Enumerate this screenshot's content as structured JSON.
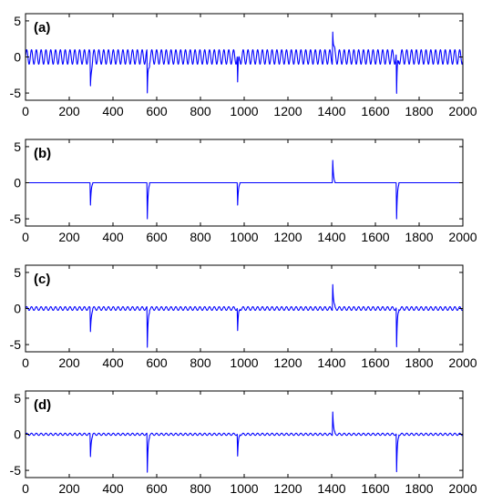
{
  "chart_data": [
    {
      "type": "line",
      "panel_label": "(a)",
      "xlim": [
        0,
        2000
      ],
      "ylim": [
        -6,
        6
      ],
      "x_ticks": [
        0,
        200,
        400,
        600,
        800,
        1000,
        1200,
        1400,
        1600,
        1800,
        2000
      ],
      "y_ticks": [
        5,
        0,
        -5
      ],
      "grid": false,
      "line_color": "#0000ff",
      "oscillation": {
        "amplitude": 1.0,
        "period": 22,
        "offset": 0
      },
      "spikes": [
        {
          "x": 297,
          "peak": -4.0
        },
        {
          "x": 557,
          "peak": -5.9
        },
        {
          "x": 970,
          "peak": -4.0
        },
        {
          "x": 1405,
          "peak": 4.2
        },
        {
          "x": 1697,
          "peak": -5.8
        }
      ]
    },
    {
      "type": "line",
      "panel_label": "(b)",
      "xlim": [
        0,
        2000
      ],
      "ylim": [
        -6,
        6
      ],
      "x_ticks": [
        0,
        200,
        400,
        600,
        800,
        1000,
        1200,
        1400,
        1600,
        1800,
        2000
      ],
      "y_ticks": [
        5,
        0,
        -5
      ],
      "grid": false,
      "line_color": "#0000ff",
      "oscillation": {
        "amplitude": 0.0,
        "period": 22,
        "offset": 0
      },
      "spikes": [
        {
          "x": 297,
          "peak": -3.1
        },
        {
          "x": 557,
          "peak": -5.0
        },
        {
          "x": 970,
          "peak": -3.1
        },
        {
          "x": 1405,
          "peak": 3.1
        },
        {
          "x": 1697,
          "peak": -5.0
        }
      ]
    },
    {
      "type": "line",
      "panel_label": "(c)",
      "xlim": [
        0,
        2000
      ],
      "ylim": [
        -6,
        6
      ],
      "x_ticks": [
        0,
        200,
        400,
        600,
        800,
        1000,
        1200,
        1400,
        1600,
        1800,
        2000
      ],
      "y_ticks": [
        5,
        0,
        -5
      ],
      "grid": false,
      "line_color": "#0000ff",
      "oscillation": {
        "amplitude": 0.25,
        "period": 22,
        "offset": 0
      },
      "spikes": [
        {
          "x": 297,
          "peak": -3.2
        },
        {
          "x": 557,
          "peak": -5.6
        },
        {
          "x": 970,
          "peak": -3.2
        },
        {
          "x": 1405,
          "peak": 3.5
        },
        {
          "x": 1697,
          "peak": -5.5
        }
      ]
    },
    {
      "type": "line",
      "panel_label": "(d)",
      "xlim": [
        0,
        2000
      ],
      "ylim": [
        -6,
        6
      ],
      "x_ticks": [
        0,
        200,
        400,
        600,
        800,
        1000,
        1200,
        1400,
        1600,
        1800,
        2000
      ],
      "y_ticks": [
        5,
        0,
        -5
      ],
      "grid": false,
      "line_color": "#0000ff",
      "oscillation": {
        "amplitude": 0.15,
        "period": 22,
        "offset": 0
      },
      "spikes": [
        {
          "x": 297,
          "peak": -3.1
        },
        {
          "x": 557,
          "peak": -5.4
        },
        {
          "x": 970,
          "peak": -3.1
        },
        {
          "x": 1405,
          "peak": 3.2
        },
        {
          "x": 1697,
          "peak": -5.3
        }
      ]
    }
  ]
}
